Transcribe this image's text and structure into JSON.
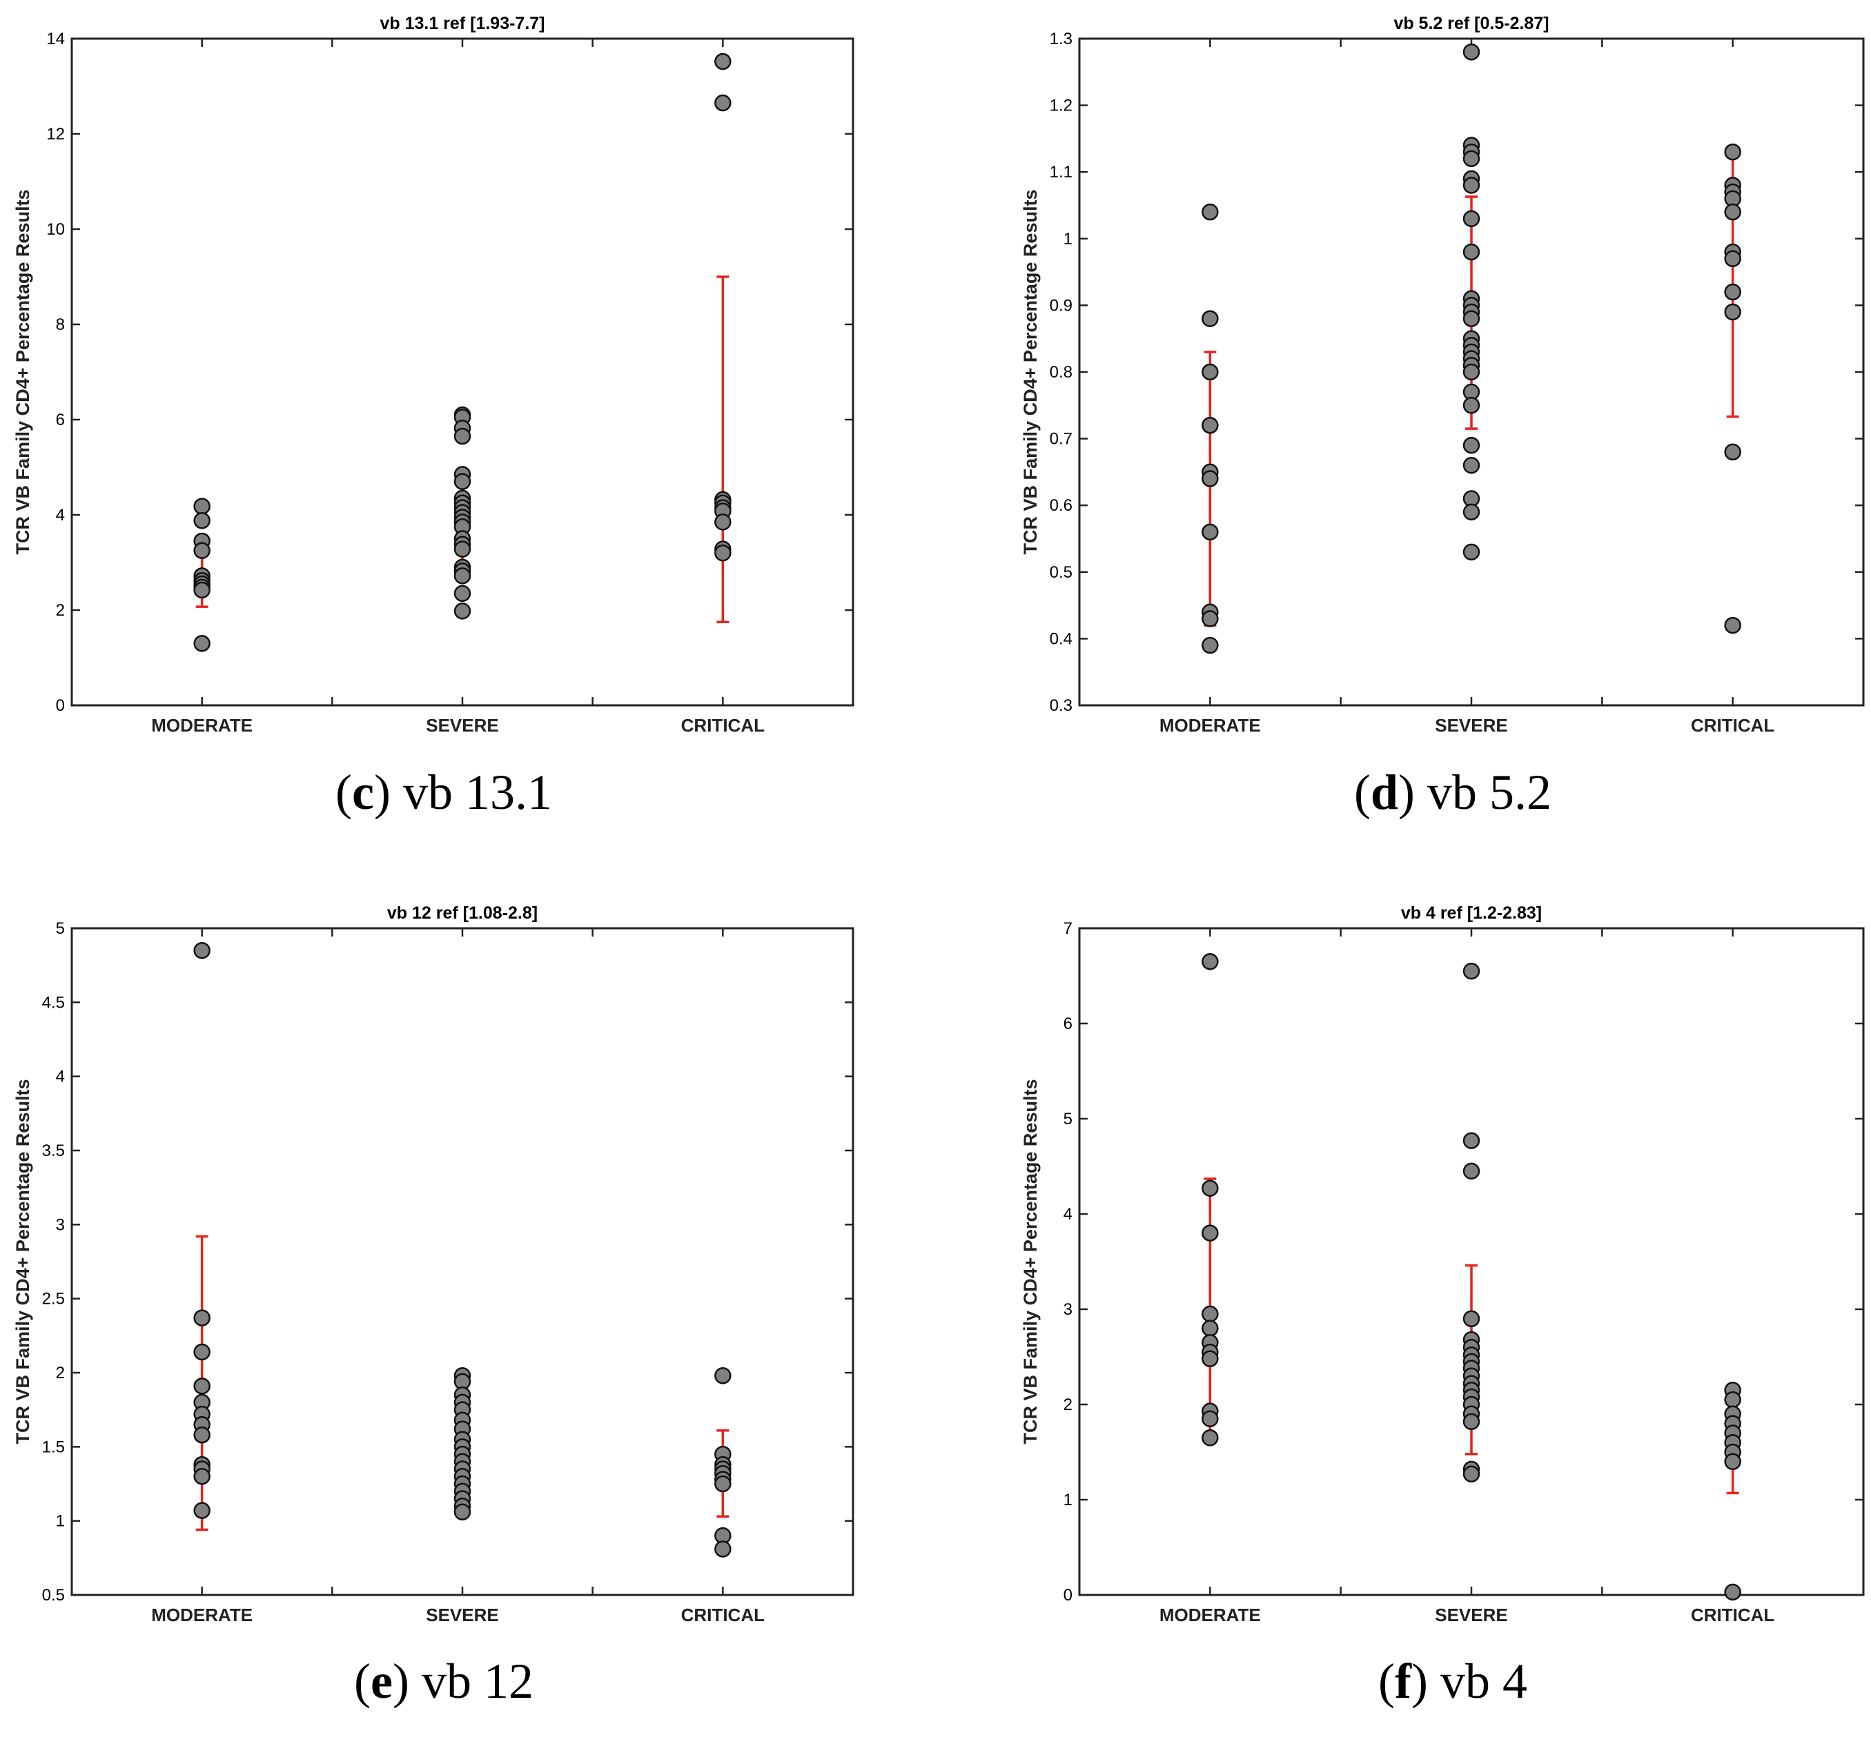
{
  "chart_data": [
    {
      "type": "scatter",
      "panel": "c",
      "title": "vb 13.1  ref [1.93-7.7]",
      "caption_letter": "c",
      "caption_text": "vb 13.1",
      "ylabel": "TCR VB Family CD4+ Percentage Results",
      "xlabel": "",
      "categories": [
        "MODERATE",
        "SEVERE",
        "CRITICAL"
      ],
      "ylim": [
        0,
        14
      ],
      "yticks": [
        0,
        2,
        4,
        6,
        8,
        10,
        12,
        14
      ],
      "ytick_labels": [
        "0",
        "2",
        "4",
        "6",
        "8",
        "10",
        "12",
        "14"
      ],
      "series": [
        {
          "name": "MODERATE",
          "values": [
            4.18,
            3.88,
            3.45,
            3.25,
            2.72,
            2.62,
            2.55,
            2.48,
            2.42,
            1.3
          ]
        },
        {
          "name": "SEVERE",
          "values": [
            6.1,
            6.05,
            5.82,
            5.65,
            4.85,
            4.7,
            4.35,
            4.25,
            4.15,
            4.05,
            3.95,
            3.85,
            3.75,
            3.5,
            3.38,
            3.28,
            2.9,
            2.82,
            2.72,
            2.35,
            1.98
          ]
        },
        {
          "name": "CRITICAL",
          "values": [
            13.52,
            12.65,
            4.32,
            4.25,
            4.15,
            4.08,
            3.85,
            3.28,
            3.2
          ]
        }
      ],
      "error_bars": [
        {
          "category": "MODERATE",
          "mean": 2.8,
          "low": 2.07,
          "high": 3.53
        },
        {
          "category": "SEVERE",
          "mean": 3.9,
          "low": 2.9,
          "high": 4.9
        },
        {
          "category": "CRITICAL",
          "mean": 5.4,
          "low": 1.75,
          "high": 9.0
        }
      ]
    },
    {
      "type": "scatter",
      "panel": "d",
      "title": "vb 5.2  ref [0.5-2.87]",
      "caption_letter": "d",
      "caption_text": "vb 5.2",
      "ylabel": "TCR VB Family CD4+ Percentage Results",
      "xlabel": "",
      "categories": [
        "MODERATE",
        "SEVERE",
        "CRITICAL"
      ],
      "ylim": [
        0.3,
        1.3
      ],
      "yticks": [
        0.3,
        0.4,
        0.5,
        0.6,
        0.7,
        0.8,
        0.9,
        1.0,
        1.1,
        1.2,
        1.3
      ],
      "ytick_labels": [
        "0.3",
        "0.4",
        "0.5",
        "0.6",
        "0.7",
        "0.8",
        "0.9",
        "1",
        "1.1",
        "1.2",
        "1.3"
      ],
      "series": [
        {
          "name": "MODERATE",
          "values": [
            1.04,
            0.88,
            0.8,
            0.72,
            0.65,
            0.64,
            0.56,
            0.44,
            0.43,
            0.39
          ]
        },
        {
          "name": "SEVERE",
          "values": [
            1.28,
            1.14,
            1.13,
            1.12,
            1.09,
            1.08,
            1.03,
            0.98,
            0.91,
            0.9,
            0.89,
            0.88,
            0.85,
            0.84,
            0.83,
            0.82,
            0.81,
            0.8,
            0.77,
            0.75,
            0.69,
            0.66,
            0.61,
            0.59,
            0.53
          ]
        },
        {
          "name": "CRITICAL",
          "values": [
            1.13,
            1.08,
            1.07,
            1.06,
            1.04,
            0.98,
            0.97,
            0.92,
            0.89,
            0.68,
            0.42
          ]
        }
      ],
      "error_bars": [
        {
          "category": "MODERATE",
          "mean": 0.625,
          "low": 0.42,
          "high": 0.83
        },
        {
          "category": "SEVERE",
          "mean": 0.89,
          "low": 0.715,
          "high": 1.063
        },
        {
          "category": "CRITICAL",
          "mean": 0.932,
          "low": 0.733,
          "high": 1.13
        }
      ]
    },
    {
      "type": "scatter",
      "panel": "e",
      "title": "vb 12  ref [1.08-2.8]",
      "caption_letter": "e",
      "caption_text": "vb 12",
      "ylabel": "TCR VB Family CD4+ Percentage Results",
      "xlabel": "",
      "categories": [
        "MODERATE",
        "SEVERE",
        "CRITICAL"
      ],
      "ylim": [
        0.5,
        5
      ],
      "yticks": [
        0.5,
        1,
        1.5,
        2,
        2.5,
        3,
        3.5,
        4,
        4.5,
        5
      ],
      "ytick_labels": [
        "0.5",
        "1",
        "1.5",
        "2",
        "2.5",
        "3",
        "3.5",
        "4",
        "4.5",
        "5"
      ],
      "series": [
        {
          "name": "MODERATE",
          "values": [
            4.85,
            2.37,
            2.14,
            1.91,
            1.8,
            1.72,
            1.65,
            1.58,
            1.38,
            1.35,
            1.3,
            1.07
          ]
        },
        {
          "name": "SEVERE",
          "values": [
            1.98,
            1.94,
            1.85,
            1.8,
            1.75,
            1.68,
            1.62,
            1.55,
            1.5,
            1.45,
            1.4,
            1.35,
            1.3,
            1.25,
            1.2,
            1.15,
            1.1,
            1.06
          ]
        },
        {
          "name": "CRITICAL",
          "values": [
            1.98,
            1.45,
            1.38,
            1.35,
            1.32,
            1.28,
            1.25,
            0.9,
            0.81
          ]
        }
      ],
      "error_bars": [
        {
          "category": "MODERATE",
          "mean": 1.93,
          "low": 0.94,
          "high": 2.92
        },
        {
          "category": "SEVERE",
          "mean": 1.48,
          "low": 1.22,
          "high": 1.74
        },
        {
          "category": "CRITICAL",
          "mean": 1.32,
          "low": 1.03,
          "high": 1.61
        }
      ]
    },
    {
      "type": "scatter",
      "panel": "f",
      "title": "vb 4  ref [1.2-2.83]",
      "caption_letter": "f",
      "caption_text": "vb 4",
      "ylabel": "TCR VB Family CD4+ Percentage Results",
      "xlabel": "",
      "categories": [
        "MODERATE",
        "SEVERE",
        "CRITICAL"
      ],
      "ylim": [
        0,
        7
      ],
      "yticks": [
        0,
        1,
        2,
        3,
        4,
        5,
        6,
        7
      ],
      "ytick_labels": [
        "0",
        "1",
        "2",
        "3",
        "4",
        "5",
        "6",
        "7"
      ],
      "series": [
        {
          "name": "MODERATE",
          "values": [
            6.65,
            4.27,
            3.8,
            2.95,
            2.8,
            2.65,
            2.55,
            2.48,
            1.93,
            1.85,
            1.65
          ]
        },
        {
          "name": "SEVERE",
          "values": [
            6.55,
            4.77,
            4.45,
            2.9,
            2.68,
            2.6,
            2.52,
            2.45,
            2.38,
            2.3,
            2.22,
            2.15,
            2.08,
            2.0,
            1.9,
            1.82,
            1.32,
            1.27
          ]
        },
        {
          "name": "CRITICAL",
          "values": [
            2.15,
            2.05,
            1.9,
            1.8,
            1.7,
            1.6,
            1.5,
            1.4,
            0.03
          ]
        }
      ],
      "error_bars": [
        {
          "category": "MODERATE",
          "mean": 3.01,
          "low": 1.65,
          "high": 4.37
        },
        {
          "category": "SEVERE",
          "mean": 2.47,
          "low": 1.48,
          "high": 3.46
        },
        {
          "category": "CRITICAL",
          "mean": 1.61,
          "low": 1.07,
          "high": 2.15
        }
      ]
    }
  ],
  "colors": {
    "marker_fill": "#808080",
    "marker_edge": "#111111",
    "error_bar": "#e8231c",
    "axes": "#222222"
  }
}
